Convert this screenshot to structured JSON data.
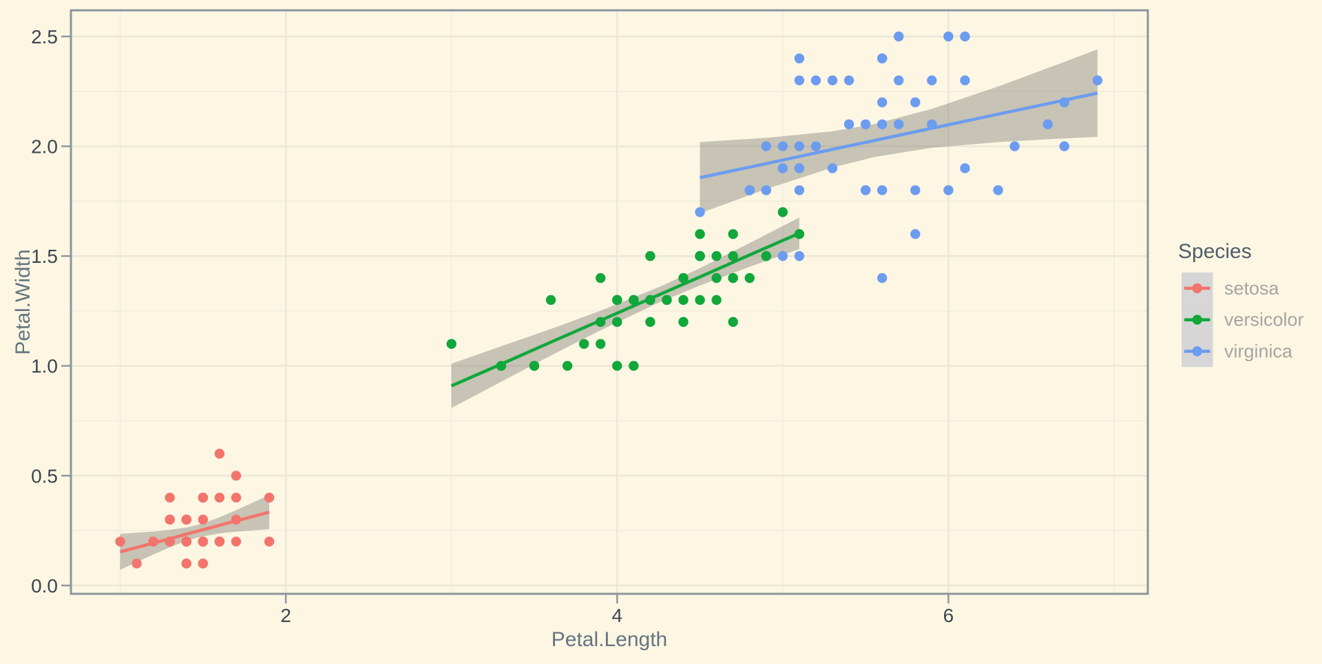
{
  "chart_data": {
    "type": "scatter",
    "title": "",
    "xlabel": "Petal.Length",
    "ylabel": "Petal.Width",
    "legend_title": "Species",
    "legend_position": "right",
    "grid": "major+minor",
    "xlim": [
      0.7027,
      7.2037
    ],
    "ylim": [
      -0.038,
      2.619
    ],
    "x_ticks": {
      "values": [
        2,
        4,
        6
      ],
      "labels": [
        "2",
        "4",
        "6"
      ],
      "minor": [
        1,
        3,
        5,
        7
      ]
    },
    "y_ticks": {
      "values": [
        0,
        0.5,
        1.0,
        1.5,
        2.0,
        2.5
      ],
      "labels": [
        "0.0",
        "0.5",
        "1.0",
        "1.5",
        "2.0",
        "2.5"
      ],
      "minor": [
        0.25,
        0.75,
        1.25,
        1.75,
        2.25
      ]
    },
    "ribbon_color": "#787870",
    "ribbon_opacity": 0.4,
    "series": [
      {
        "name": "setosa",
        "color": "#F3746C",
        "points": [
          [
            1.4,
            0.2
          ],
          [
            1.4,
            0.2
          ],
          [
            1.3,
            0.2
          ],
          [
            1.5,
            0.2
          ],
          [
            1.4,
            0.2
          ],
          [
            1.7,
            0.4
          ],
          [
            1.4,
            0.3
          ],
          [
            1.5,
            0.2
          ],
          [
            1.4,
            0.2
          ],
          [
            1.5,
            0.1
          ],
          [
            1.5,
            0.2
          ],
          [
            1.6,
            0.2
          ],
          [
            1.4,
            0.1
          ],
          [
            1.1,
            0.1
          ],
          [
            1.2,
            0.2
          ],
          [
            1.5,
            0.4
          ],
          [
            1.3,
            0.4
          ],
          [
            1.4,
            0.3
          ],
          [
            1.7,
            0.3
          ],
          [
            1.5,
            0.3
          ],
          [
            1.7,
            0.2
          ],
          [
            1.5,
            0.4
          ],
          [
            1.0,
            0.2
          ],
          [
            1.7,
            0.5
          ],
          [
            1.9,
            0.2
          ],
          [
            1.6,
            0.2
          ],
          [
            1.6,
            0.4
          ],
          [
            1.5,
            0.2
          ],
          [
            1.4,
            0.2
          ],
          [
            1.6,
            0.2
          ],
          [
            1.6,
            0.2
          ],
          [
            1.5,
            0.4
          ],
          [
            1.5,
            0.1
          ],
          [
            1.4,
            0.2
          ],
          [
            1.5,
            0.2
          ],
          [
            1.2,
            0.2
          ],
          [
            1.3,
            0.2
          ],
          [
            1.4,
            0.1
          ],
          [
            1.3,
            0.2
          ],
          [
            1.5,
            0.2
          ],
          [
            1.3,
            0.3
          ],
          [
            1.3,
            0.3
          ],
          [
            1.3,
            0.2
          ],
          [
            1.6,
            0.6
          ],
          [
            1.9,
            0.4
          ],
          [
            1.4,
            0.3
          ],
          [
            1.6,
            0.2
          ],
          [
            1.4,
            0.2
          ],
          [
            1.5,
            0.2
          ],
          [
            1.4,
            0.2
          ]
        ],
        "smooth": {
          "x": [
            1.0,
            1.1,
            1.2,
            1.3,
            1.4,
            1.462,
            1.5,
            1.6,
            1.7,
            1.8,
            1.9
          ],
          "fit": [
            0.153,
            0.173,
            0.193,
            0.213,
            0.234,
            0.246,
            0.254,
            0.274,
            0.294,
            0.314,
            0.334
          ],
          "lower": [
            0.071,
            0.107,
            0.141,
            0.174,
            0.203,
            0.217,
            0.224,
            0.237,
            0.245,
            0.251,
            0.256
          ],
          "upper": [
            0.235,
            0.24,
            0.245,
            0.253,
            0.264,
            0.275,
            0.283,
            0.31,
            0.343,
            0.377,
            0.412
          ]
        }
      },
      {
        "name": "versicolor",
        "color": "#11A73B",
        "points": [
          [
            4.7,
            1.4
          ],
          [
            4.5,
            1.5
          ],
          [
            4.9,
            1.5
          ],
          [
            4.0,
            1.3
          ],
          [
            4.6,
            1.5
          ],
          [
            4.5,
            1.3
          ],
          [
            4.7,
            1.6
          ],
          [
            3.3,
            1.0
          ],
          [
            4.6,
            1.3
          ],
          [
            3.9,
            1.4
          ],
          [
            3.5,
            1.0
          ],
          [
            4.2,
            1.5
          ],
          [
            4.0,
            1.0
          ],
          [
            4.7,
            1.4
          ],
          [
            3.6,
            1.3
          ],
          [
            4.4,
            1.4
          ],
          [
            4.5,
            1.5
          ],
          [
            4.1,
            1.0
          ],
          [
            4.5,
            1.5
          ],
          [
            3.9,
            1.1
          ],
          [
            4.8,
            1.8
          ],
          [
            4.0,
            1.3
          ],
          [
            4.9,
            1.5
          ],
          [
            4.7,
            1.2
          ],
          [
            4.3,
            1.3
          ],
          [
            4.4,
            1.4
          ],
          [
            4.8,
            1.4
          ],
          [
            5.0,
            1.7
          ],
          [
            4.5,
            1.5
          ],
          [
            3.5,
            1.0
          ],
          [
            3.8,
            1.1
          ],
          [
            3.7,
            1.0
          ],
          [
            3.9,
            1.2
          ],
          [
            5.1,
            1.6
          ],
          [
            4.5,
            1.5
          ],
          [
            4.5,
            1.6
          ],
          [
            4.7,
            1.5
          ],
          [
            4.4,
            1.3
          ],
          [
            4.1,
            1.3
          ],
          [
            4.0,
            1.3
          ],
          [
            4.4,
            1.2
          ],
          [
            4.6,
            1.4
          ],
          [
            4.0,
            1.2
          ],
          [
            3.3,
            1.0
          ],
          [
            4.2,
            1.3
          ],
          [
            4.2,
            1.2
          ],
          [
            4.2,
            1.3
          ],
          [
            4.3,
            1.3
          ],
          [
            3.0,
            1.1
          ],
          [
            4.1,
            1.3
          ]
        ],
        "smooth": {
          "x": [
            3.0,
            3.3,
            3.6,
            3.9,
            4.26,
            4.5,
            4.8,
            5.1
          ],
          "fit": [
            0.909,
            1.008,
            1.108,
            1.207,
            1.326,
            1.405,
            1.505,
            1.604
          ],
          "lower": [
            0.808,
            0.928,
            1.047,
            1.162,
            1.291,
            1.366,
            1.451,
            1.532
          ],
          "upper": [
            1.01,
            1.089,
            1.168,
            1.251,
            1.361,
            1.445,
            1.559,
            1.676
          ]
        }
      },
      {
        "name": "virginica",
        "color": "#6C9CF0",
        "points": [
          [
            6.0,
            2.5
          ],
          [
            5.1,
            1.9
          ],
          [
            5.9,
            2.1
          ],
          [
            5.6,
            1.8
          ],
          [
            5.8,
            2.2
          ],
          [
            6.6,
            2.1
          ],
          [
            4.5,
            1.7
          ],
          [
            6.3,
            1.8
          ],
          [
            5.8,
            1.8
          ],
          [
            6.1,
            2.5
          ],
          [
            5.1,
            2.0
          ],
          [
            5.3,
            1.9
          ],
          [
            5.5,
            2.1
          ],
          [
            5.0,
            2.0
          ],
          [
            5.1,
            2.4
          ],
          [
            5.3,
            2.3
          ],
          [
            5.5,
            1.8
          ],
          [
            6.7,
            2.2
          ],
          [
            6.9,
            2.3
          ],
          [
            5.0,
            1.5
          ],
          [
            5.7,
            2.3
          ],
          [
            4.9,
            2.0
          ],
          [
            6.7,
            2.0
          ],
          [
            4.9,
            1.8
          ],
          [
            5.7,
            2.1
          ],
          [
            6.0,
            1.8
          ],
          [
            4.8,
            1.8
          ],
          [
            4.9,
            1.8
          ],
          [
            5.6,
            2.1
          ],
          [
            5.8,
            1.6
          ],
          [
            6.1,
            1.9
          ],
          [
            6.4,
            2.0
          ],
          [
            5.6,
            2.2
          ],
          [
            5.1,
            1.5
          ],
          [
            5.6,
            1.4
          ],
          [
            6.1,
            2.3
          ],
          [
            5.6,
            2.4
          ],
          [
            5.5,
            1.8
          ],
          [
            4.8,
            1.8
          ],
          [
            5.4,
            2.1
          ],
          [
            5.6,
            2.4
          ],
          [
            5.1,
            2.3
          ],
          [
            5.1,
            1.9
          ],
          [
            5.9,
            2.3
          ],
          [
            5.7,
            2.5
          ],
          [
            5.2,
            2.3
          ],
          [
            5.0,
            1.9
          ],
          [
            5.2,
            2.0
          ],
          [
            5.4,
            2.3
          ],
          [
            5.1,
            1.8
          ]
        ],
        "smooth": {
          "x": [
            4.5,
            4.9,
            5.3,
            5.552,
            5.9,
            6.3,
            6.6,
            6.9
          ],
          "fit": [
            1.857,
            1.921,
            1.986,
            2.026,
            2.082,
            2.146,
            2.194,
            2.242
          ],
          "lower": [
            1.695,
            1.805,
            1.903,
            1.951,
            1.993,
            2.019,
            2.032,
            2.043
          ],
          "upper": [
            2.019,
            2.038,
            2.068,
            2.101,
            2.17,
            2.272,
            2.356,
            2.441
          ]
        }
      }
    ]
  },
  "theme": {
    "background": "#FCF6E3",
    "panel_background": "#FCF6E3",
    "grid_major_color": "#ECE6D6",
    "grid_minor_color": "#F2ECDC",
    "panel_border_color": "#8A959B",
    "tick_mark_color": "#8E989E",
    "tick_label_color": "#3C4650",
    "axis_title_color": "#64757F",
    "legend_title_color": "#4E5E69",
    "legend_label_color": "#A5A5A1",
    "legend_key_background": "#D6D6D6"
  }
}
